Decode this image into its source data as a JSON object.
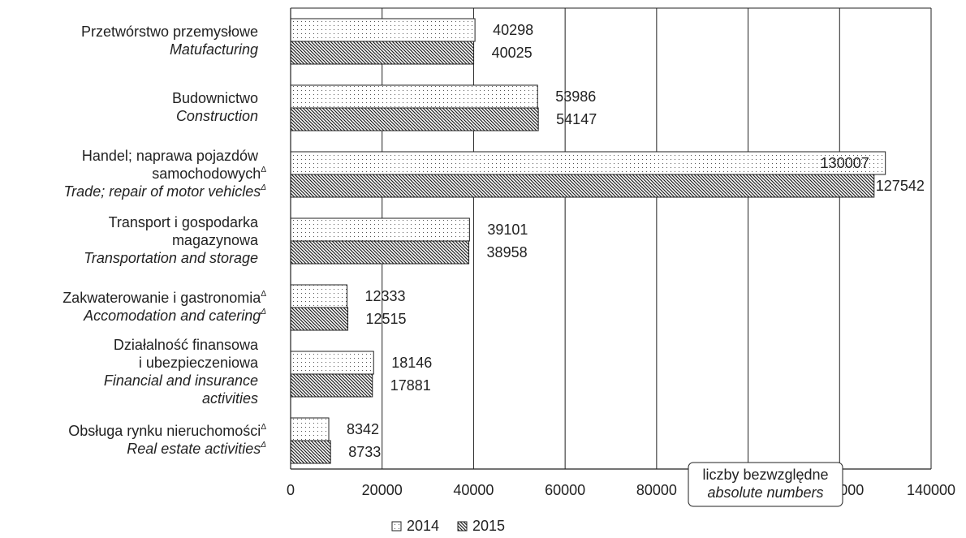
{
  "chart_data": {
    "type": "bar",
    "orientation": "horizontal",
    "categories": [
      {
        "pl": "Przetwórstwo przemysłowe",
        "en": "Matufacturing"
      },
      {
        "pl": "Budownictwo",
        "en": "Construction"
      },
      {
        "pl": "Handel; naprawa pojazdów samochodowych",
        "en": "Trade; repair of motor vehicles"
      },
      {
        "pl": "Transport i gospodarka magazynowa",
        "en": "Transportation and storage"
      },
      {
        "pl": "Zakwaterowanie i gastronomia",
        "en": "Accomodation and catering"
      },
      {
        "pl": "Działalność finansowa i ubezpieczeniowa",
        "en": "Financial and insurance activities"
      },
      {
        "pl": "Obsługa rynku nieruchomości",
        "en": "Real estate activities"
      }
    ],
    "label_lines": [
      [
        {
          "t": "Przetwórstwo przemysłowe",
          "i": false
        },
        {
          "t": "Matufacturing",
          "i": true
        }
      ],
      [
        {
          "t": "Budownictwo",
          "i": false
        },
        {
          "t": "Construction",
          "i": true
        }
      ],
      [
        {
          "t": "Handel; naprawa pojazdów",
          "i": false
        },
        {
          "t": "samochodowych",
          "i": false,
          "sup": "Δ"
        },
        {
          "t": "Trade; repair of motor vehicles",
          "i": true,
          "sup": "Δ"
        }
      ],
      [
        {
          "t": "Transport i gospodarka",
          "i": false
        },
        {
          "t": "magazynowa",
          "i": false
        },
        {
          "t": "Transportation and storage",
          "i": true
        }
      ],
      [
        {
          "t": "Zakwaterowanie i gastronomia",
          "i": false,
          "sup": "Δ"
        },
        {
          "t": "Accomodation and catering",
          "i": true,
          "sup": "Δ"
        }
      ],
      [
        {
          "t": "Działalność finansowa",
          "i": false
        },
        {
          "t": "i ubezpieczeniowa",
          "i": false
        },
        {
          "t": "Financial and insurance",
          "i": true
        },
        {
          "t": "activities",
          "i": true
        }
      ],
      [
        {
          "t": "Obsługa rynku nieruchomości",
          "i": false,
          "sup": "Δ"
        },
        {
          "t": "Real estate activities",
          "i": true,
          "sup": "Δ"
        }
      ]
    ],
    "series": [
      {
        "name": "2014",
        "values": [
          40298,
          53986,
          130007,
          39101,
          12333,
          18146,
          8342
        ]
      },
      {
        "name": "2015",
        "values": [
          40025,
          54147,
          127542,
          38958,
          12515,
          17881,
          8733
        ]
      }
    ],
    "xlim": [
      0,
      140000
    ],
    "xticks": [
      "0",
      "20000",
      "40000",
      "60000",
      "80000",
      "100000",
      "120000",
      "140000"
    ],
    "grid": "vertical",
    "legend_position": "bottom-center",
    "annotation": {
      "line1": "liczby bezwzględne",
      "line2": "absolute numbers"
    }
  }
}
